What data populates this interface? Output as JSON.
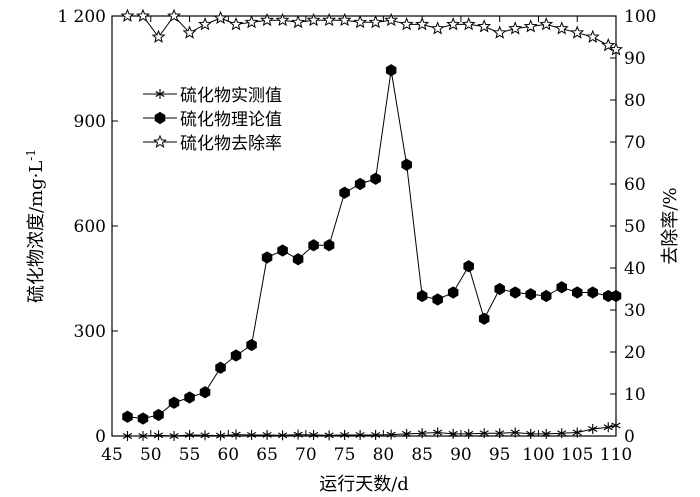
{
  "chart_data": {
    "type": "line",
    "xlabel": "运行天数/d",
    "ylabel_left": "硫化物浓度/mg·L",
    "ylabel_left_superscript": "-1",
    "ylabel_right": "去除率/%",
    "xlim": [
      45,
      110
    ],
    "ylim_left": [
      0,
      1200
    ],
    "ylim_right": [
      0,
      100
    ],
    "xticks": [
      45,
      50,
      55,
      60,
      65,
      70,
      75,
      80,
      85,
      90,
      95,
      100,
      105,
      110
    ],
    "yticks_left": [
      0,
      300,
      600,
      900,
      1200
    ],
    "yticks_left_labels": [
      "0",
      "300",
      "600",
      "900",
      "1 200"
    ],
    "yticks_right": [
      0,
      10,
      20,
      30,
      40,
      50,
      60,
      70,
      80,
      90,
      100
    ],
    "legend_position": "upper-left",
    "grid": false,
    "series": [
      {
        "name": "硫化物实测值",
        "axis": "left",
        "marker": "asterisk",
        "x": [
          47,
          49,
          51,
          53,
          55,
          57,
          59,
          61,
          63,
          65,
          67,
          69,
          71,
          73,
          75,
          77,
          79,
          81,
          83,
          85,
          87,
          89,
          91,
          93,
          95,
          97,
          99,
          101,
          103,
          105,
          107,
          109,
          110
        ],
        "values": [
          0,
          0,
          2,
          0,
          3,
          2,
          1,
          4,
          3,
          3,
          2,
          4,
          3,
          2,
          3,
          3,
          3,
          4,
          6,
          8,
          10,
          6,
          6,
          8,
          8,
          10,
          6,
          6,
          8,
          10,
          20,
          25,
          30
        ]
      },
      {
        "name": "硫化物理论值",
        "axis": "left",
        "marker": "filled-hexagon",
        "x": [
          47,
          49,
          51,
          53,
          55,
          57,
          59,
          61,
          63,
          65,
          67,
          69,
          71,
          73,
          75,
          77,
          79,
          81,
          83,
          85,
          87,
          89,
          91,
          93,
          95,
          97,
          99,
          101,
          103,
          105,
          107,
          109,
          110
        ],
        "values": [
          55,
          50,
          60,
          95,
          110,
          125,
          195,
          230,
          260,
          510,
          530,
          505,
          545,
          545,
          695,
          720,
          735,
          1045,
          775,
          400,
          390,
          410,
          485,
          335,
          420,
          410,
          405,
          400,
          425,
          410,
          410,
          400,
          400
        ]
      },
      {
        "name": "硫化物去除率",
        "axis": "right",
        "marker": "open-star",
        "x": [
          47,
          49,
          51,
          53,
          55,
          57,
          59,
          61,
          63,
          65,
          67,
          69,
          71,
          73,
          75,
          77,
          79,
          81,
          83,
          85,
          87,
          89,
          91,
          93,
          95,
          97,
          99,
          101,
          103,
          105,
          107,
          109,
          110
        ],
        "values": [
          100,
          100,
          95,
          100,
          96,
          98,
          99.5,
          98,
          98.5,
          99,
          99,
          98.5,
          99,
          99,
          99,
          98.5,
          98.5,
          99,
          98,
          98,
          97,
          98,
          98,
          97.5,
          96,
          97,
          97.5,
          98,
          97,
          96,
          95,
          93,
          92
        ]
      }
    ]
  }
}
